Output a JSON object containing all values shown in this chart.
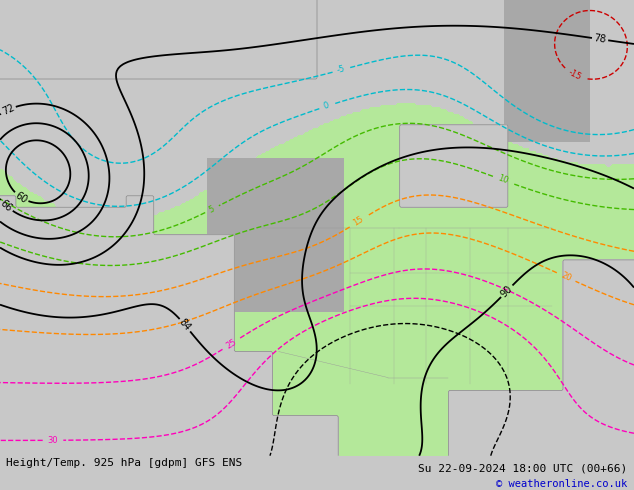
{
  "title_left": "Height/Temp. 925 hPa [gdpm] GFS ENS",
  "title_right": "Su 22-09-2024 18:00 UTC (00+66)",
  "copyright": "© weatheronline.co.uk",
  "bg_color": "#c8c8c8",
  "ocean_color": "#c8ccd8",
  "land_color": "#c8c8c8",
  "green_fill_color": "#b4e89a",
  "gray_terrain_color": "#a8a8a8",
  "figsize": [
    6.34,
    4.9
  ],
  "dpi": 100,
  "xlim": [
    -168,
    -52
  ],
  "ylim": [
    14,
    84
  ],
  "title_fontsize": 8.0,
  "copyright_fontsize": 7.5,
  "copyright_color": "#0000cc"
}
